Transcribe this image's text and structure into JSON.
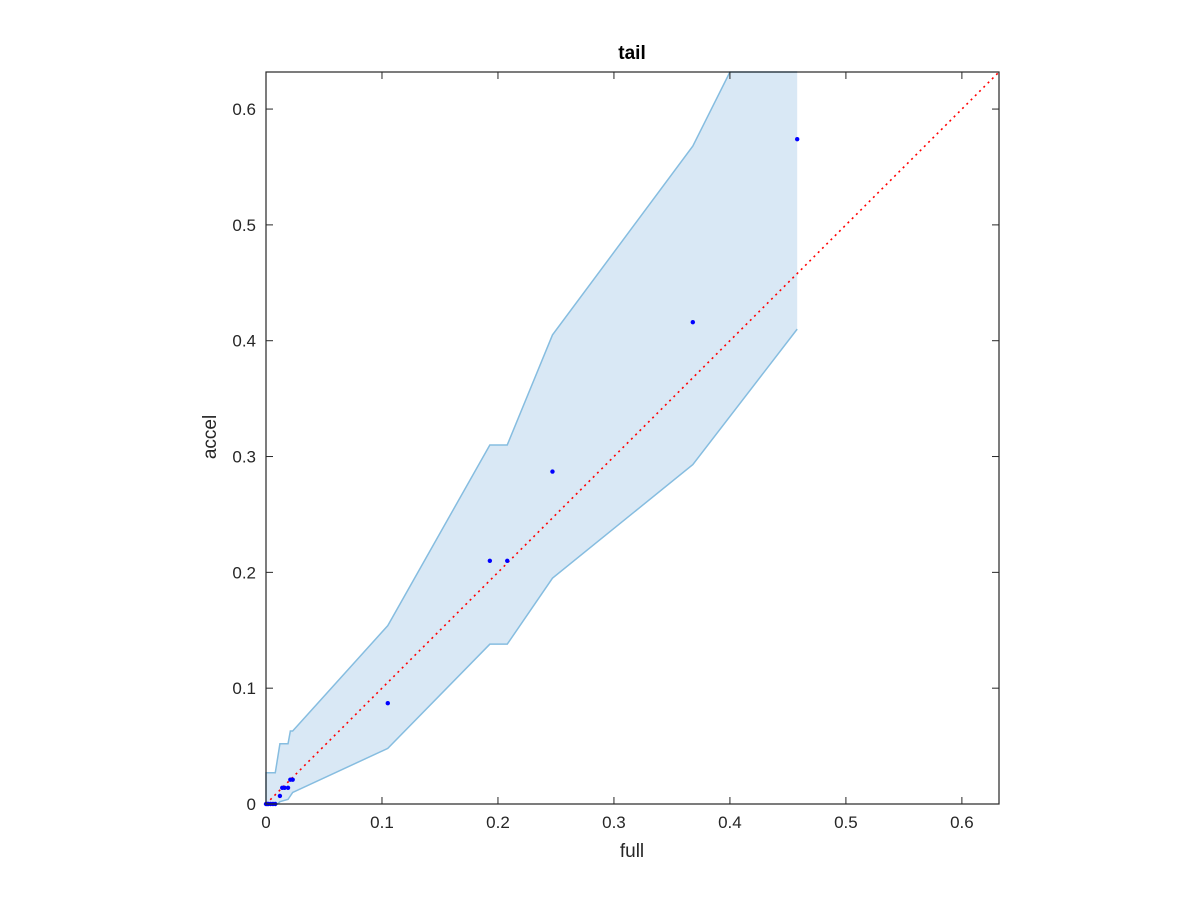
{
  "chart_data": {
    "type": "scatter",
    "title": "tail",
    "xlabel": "full",
    "ylabel": "accel",
    "xlim": [
      0,
      0.632
    ],
    "ylim": [
      0,
      0.632
    ],
    "xticks": [
      0,
      0.1,
      0.2,
      0.3,
      0.4,
      0.5,
      0.6
    ],
    "yticks": [
      0,
      0.1,
      0.2,
      0.3,
      0.4,
      0.5,
      0.6
    ],
    "xtick_labels": [
      "0",
      "0.1",
      "0.2",
      "0.3",
      "0.4",
      "0.5",
      "0.6"
    ],
    "ytick_labels": [
      "0",
      "0.1",
      "0.2",
      "0.3",
      "0.4",
      "0.5",
      "0.6"
    ],
    "grid": false,
    "box": true,
    "points": {
      "color": "#0000ff",
      "x": [
        0.0,
        0.001,
        0.002,
        0.004,
        0.006,
        0.008,
        0.012,
        0.014,
        0.016,
        0.019,
        0.021,
        0.023,
        0.105,
        0.193,
        0.208,
        0.247,
        0.368,
        0.458
      ],
      "y": [
        0.0,
        0.0,
        0.0,
        0.0,
        0.0,
        0.0,
        0.007,
        0.014,
        0.014,
        0.014,
        0.021,
        0.021,
        0.087,
        0.21,
        0.21,
        0.287,
        0.416,
        0.574
      ]
    },
    "band": {
      "fill": "#d9e8f5",
      "stroke": "#86bde0",
      "upper": {
        "x": [
          0.0,
          0.0,
          0.008,
          0.012,
          0.019,
          0.021,
          0.023,
          0.105,
          0.193,
          0.208,
          0.247,
          0.368,
          0.4,
          0.458,
          0.458
        ],
        "y": [
          0.0,
          0.027,
          0.027,
          0.052,
          0.052,
          0.063,
          0.063,
          0.154,
          0.31,
          0.31,
          0.405,
          0.568,
          0.632,
          0.632,
          0.632
        ]
      },
      "lower": {
        "x": [
          0.0,
          0.01,
          0.012,
          0.019,
          0.023,
          0.105,
          0.193,
          0.208,
          0.247,
          0.368,
          0.458
        ],
        "y": [
          0.0,
          0.0,
          0.002,
          0.004,
          0.01,
          0.048,
          0.138,
          0.138,
          0.195,
          0.293,
          0.41
        ]
      }
    },
    "reference_line": {
      "color": "#ff0000",
      "style": "dotted",
      "x": [
        0,
        0.632
      ],
      "y": [
        0,
        0.632
      ]
    }
  }
}
